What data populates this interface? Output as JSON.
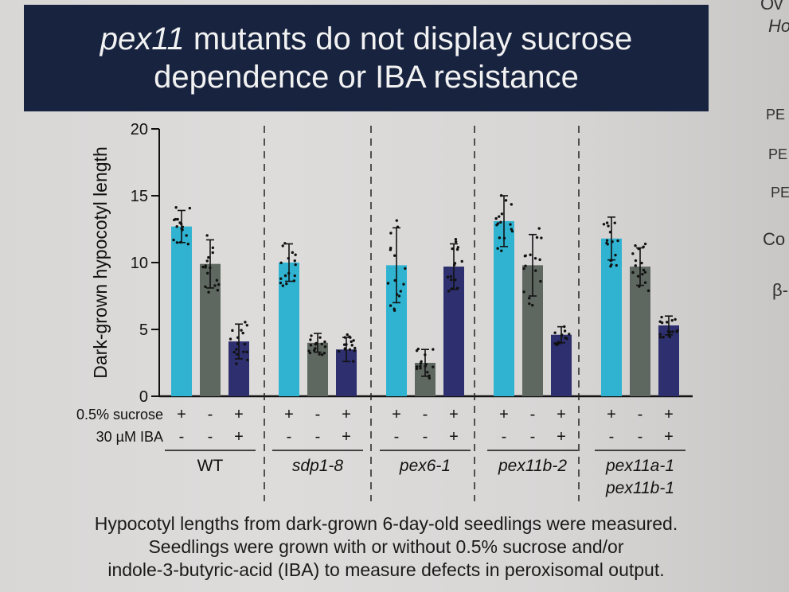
{
  "title": {
    "prefix": "pex11",
    "rest": " mutants do not display sucrose",
    "line2": "dependence or IBA resistance"
  },
  "side_text": [
    "Ov",
    "Ho",
    "PE",
    "PE",
    "PE",
    "Co",
    "β-"
  ],
  "caption": [
    "Hypocotyl lengths from dark-grown 6-day-old seedlings were measured.",
    "Seedlings were grown with or without 0.5% sucrose and/or",
    "indole-3-butyric-acid (IBA) to measure defects in peroxisomal output."
  ],
  "colors": {
    "sucrose": "#2fb3d1",
    "no_sucrose": "#5f6860",
    "sucrose_iba": "#2d2f6e",
    "banner": "#17233f"
  },
  "chart_data": {
    "type": "bar",
    "ylabel": "Dark-grown hypocotyl length",
    "ylim": [
      0,
      20
    ],
    "yticks": [
      "0",
      "5",
      "10",
      "15",
      "20"
    ],
    "row_labels": [
      "0.5% sucrose",
      "30 µM IBA"
    ],
    "groups": [
      {
        "label": [
          "WT"
        ],
        "italic": false,
        "values": [
          12.7,
          9.9,
          4.1
        ],
        "errors": [
          1.2,
          1.8,
          1.3
        ]
      },
      {
        "label": [
          "sdp1-8"
        ],
        "italic": true,
        "values": [
          10.0,
          4.0,
          3.5
        ],
        "errors": [
          1.4,
          0.7,
          0.9
        ]
      },
      {
        "label": [
          "pex6-1"
        ],
        "italic": true,
        "values": [
          9.8,
          2.5,
          9.7
        ],
        "errors": [
          2.8,
          1.0,
          1.7
        ]
      },
      {
        "label": [
          "pex11b-2"
        ],
        "italic": true,
        "values": [
          13.1,
          9.8,
          4.6
        ],
        "errors": [
          1.9,
          2.3,
          0.6
        ]
      },
      {
        "label": [
          "pex11a-1",
          "pex11b-1"
        ],
        "italic": true,
        "values": [
          11.8,
          9.7,
          5.3
        ],
        "errors": [
          1.6,
          1.4,
          0.7
        ]
      }
    ],
    "sucrose_signs": [
      "+",
      "-",
      "+"
    ],
    "iba_signs": [
      "-",
      "-",
      "+"
    ]
  }
}
